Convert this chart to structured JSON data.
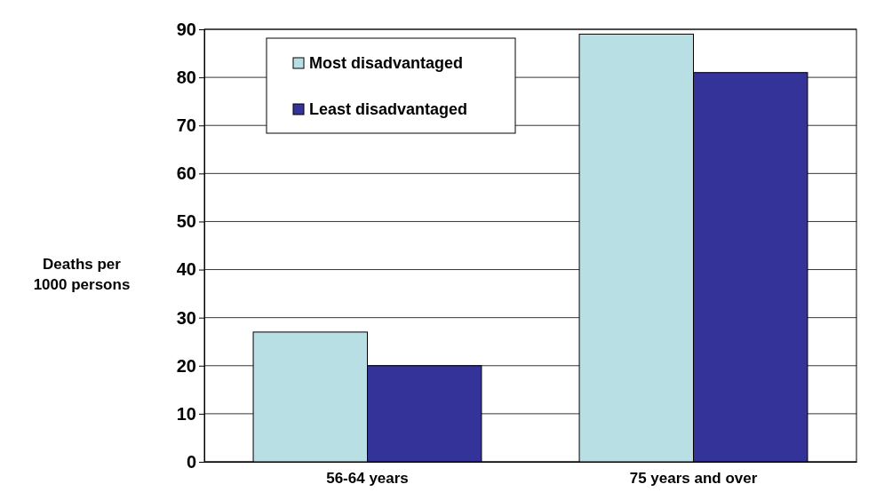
{
  "chart_data": {
    "type": "bar",
    "ylabel": "Deaths per 1000 persons",
    "categories": [
      "56-64 years",
      "75 years and over"
    ],
    "series": [
      {
        "name": "Most disadvantaged",
        "color": "#b8e0e4",
        "values": [
          27,
          89
        ]
      },
      {
        "name": "Least disadvantaged",
        "color": "#333399",
        "values": [
          20,
          81
        ]
      }
    ],
    "ylim": [
      0,
      90
    ],
    "yticks": [
      0,
      10,
      20,
      30,
      40,
      50,
      60,
      70,
      80,
      90
    ],
    "grid": "y",
    "legend": "top left"
  }
}
